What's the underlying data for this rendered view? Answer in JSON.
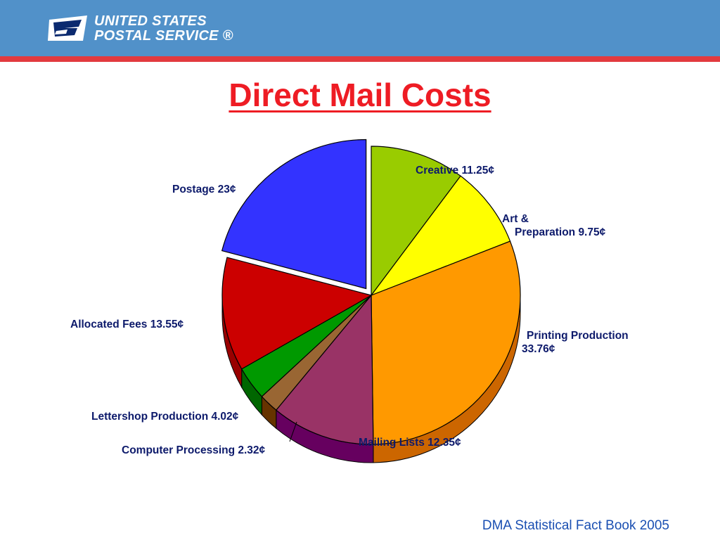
{
  "header": {
    "logo_line1": "UNITED STATES",
    "logo_line2": "POSTAL SERVICE ®",
    "colors": {
      "band": "#5191c9",
      "rule": "#e23a3f"
    }
  },
  "title": "Direct Mail Costs",
  "source": "DMA Statistical Fact Book 2005",
  "chart_data": {
    "type": "pie",
    "title": "Direct Mail Costs",
    "unit": "¢",
    "exploded": "Postage",
    "series": [
      {
        "name": "Creative",
        "label": "Creative 11.25¢",
        "value": 11.25,
        "color": "#99cc00",
        "dark": "#5c7a00"
      },
      {
        "name": "Art & Preparation",
        "label_lines": [
          "Art &",
          "Preparation 9.75¢"
        ],
        "value": 9.75,
        "color": "#ffff00",
        "dark": "#a3a300"
      },
      {
        "name": "Printing Production",
        "label_lines": [
          "Printing Production",
          "33.76¢"
        ],
        "value": 33.76,
        "color": "#ff9900",
        "dark": "#cc6600"
      },
      {
        "name": "Mailing Lists",
        "label": "Mailing Lists 12.35¢",
        "value": 12.35,
        "color": "#993366",
        "dark": "#66005f"
      },
      {
        "name": "Computer Processing",
        "label": "Computer Processing 2.32¢",
        "value": 2.32,
        "color": "#996633",
        "dark": "#663300"
      },
      {
        "name": "Lettershop Production",
        "label": "Lettershop Production 4.02¢",
        "value": 4.02,
        "color": "#009900",
        "dark": "#006600"
      },
      {
        "name": "Allocated Fees",
        "label": "Allocated Fees 13.55¢",
        "value": 13.55,
        "color": "#cc0000",
        "dark": "#990000"
      },
      {
        "name": "Postage",
        "label": "Postage 23¢",
        "value": 23,
        "color": "#3333ff",
        "dark": "#00008b"
      }
    ]
  }
}
